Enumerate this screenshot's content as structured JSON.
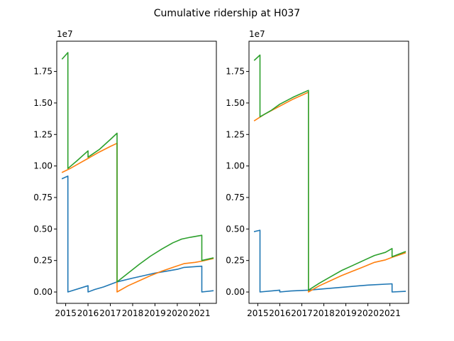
{
  "title": "Cumulative ridership at H037",
  "chart_data": [
    {
      "type": "line",
      "panel": "left",
      "offset_label": "1e7",
      "x_unit": "year",
      "xlim": [
        2014.6,
        2021.75
      ],
      "ylim": [
        -0.09,
        1.99
      ],
      "x_ticks": [
        2015,
        2016,
        2017,
        2018,
        2019,
        2020,
        2021
      ],
      "x_tick_labels": [
        "2015",
        "2016",
        "2017",
        "2018",
        "2019",
        "2020",
        "2021"
      ],
      "y_ticks": [
        0.0,
        0.25,
        0.5,
        0.75,
        1.0,
        1.25,
        1.5,
        1.75
      ],
      "y_tick_labels": [
        "0.00",
        "0.25",
        "0.50",
        "0.75",
        "1.00",
        "1.25",
        "1.50",
        "1.75"
      ],
      "series": [
        {
          "color": "#1f77b4",
          "points": [
            [
              2014.85,
              0.9
            ],
            [
              2015.1,
              0.92
            ],
            [
              2015.1,
              0.0
            ],
            [
              2016.0,
              0.05
            ],
            [
              2016.0,
              0.0
            ],
            [
              2016.3,
              0.02
            ],
            [
              2016.7,
              0.04
            ],
            [
              2017.3,
              0.08
            ],
            [
              2018.0,
              0.11
            ],
            [
              2018.5,
              0.13
            ],
            [
              2019.0,
              0.15
            ],
            [
              2019.5,
              0.165
            ],
            [
              2020.0,
              0.18
            ],
            [
              2020.3,
              0.195
            ],
            [
              2020.7,
              0.2
            ],
            [
              2021.1,
              0.205
            ],
            [
              2021.1,
              0.0
            ],
            [
              2021.6,
              0.01
            ]
          ]
        },
        {
          "color": "#ff7f0e",
          "points": [
            [
              2014.85,
              0.95
            ],
            [
              2015.2,
              0.98
            ],
            [
              2015.6,
              1.02
            ],
            [
              2016.0,
              1.06
            ],
            [
              2016.5,
              1.11
            ],
            [
              2017.0,
              1.155
            ],
            [
              2017.3,
              1.18
            ],
            [
              2017.3,
              0.0
            ],
            [
              2017.8,
              0.05
            ],
            [
              2018.3,
              0.09
            ],
            [
              2018.8,
              0.13
            ],
            [
              2019.3,
              0.165
            ],
            [
              2019.8,
              0.195
            ],
            [
              2020.3,
              0.225
            ],
            [
              2020.8,
              0.235
            ],
            [
              2021.1,
              0.245
            ],
            [
              2021.6,
              0.265
            ]
          ]
        },
        {
          "color": "#2ca02c",
          "points": [
            [
              2014.85,
              1.85
            ],
            [
              2015.1,
              1.9
            ],
            [
              2015.1,
              0.98
            ],
            [
              2015.5,
              1.04
            ],
            [
              2016.0,
              1.12
            ],
            [
              2016.0,
              1.07
            ],
            [
              2016.5,
              1.13
            ],
            [
              2017.0,
              1.21
            ],
            [
              2017.3,
              1.26
            ],
            [
              2017.3,
              0.08
            ],
            [
              2017.8,
              0.15
            ],
            [
              2018.3,
              0.22
            ],
            [
              2018.8,
              0.285
            ],
            [
              2019.3,
              0.34
            ],
            [
              2019.8,
              0.39
            ],
            [
              2020.2,
              0.42
            ],
            [
              2020.6,
              0.435
            ],
            [
              2021.1,
              0.45
            ],
            [
              2021.1,
              0.25
            ],
            [
              2021.6,
              0.27
            ]
          ]
        }
      ]
    },
    {
      "type": "line",
      "panel": "right",
      "offset_label": "1e7",
      "x_unit": "year",
      "xlim": [
        2014.6,
        2021.85
      ],
      "ylim": [
        -0.09,
        1.99
      ],
      "x_ticks": [
        2015,
        2016,
        2017,
        2018,
        2019,
        2020,
        2021
      ],
      "x_tick_labels": [
        "2015",
        "2016",
        "2017",
        "2018",
        "2019",
        "2020",
        "2021"
      ],
      "y_ticks": [
        0.0,
        0.25,
        0.5,
        0.75,
        1.0,
        1.25,
        1.5,
        1.75
      ],
      "y_tick_labels": [
        "0.00",
        "0.25",
        "0.50",
        "0.75",
        "1.00",
        "1.25",
        "1.50",
        "1.75"
      ],
      "series": [
        {
          "color": "#1f77b4",
          "points": [
            [
              2014.85,
              0.48
            ],
            [
              2015.1,
              0.49
            ],
            [
              2015.1,
              0.0
            ],
            [
              2016.0,
              0.015
            ],
            [
              2016.0,
              0.0
            ],
            [
              2016.5,
              0.008
            ],
            [
              2017.3,
              0.015
            ],
            [
              2018.0,
              0.025
            ],
            [
              2019.0,
              0.04
            ],
            [
              2020.0,
              0.055
            ],
            [
              2021.1,
              0.065
            ],
            [
              2021.1,
              0.0
            ],
            [
              2021.7,
              0.005
            ]
          ]
        },
        {
          "color": "#ff7f0e",
          "points": [
            [
              2014.85,
              1.36
            ],
            [
              2015.3,
              1.41
            ],
            [
              2016.0,
              1.475
            ],
            [
              2016.6,
              1.53
            ],
            [
              2017.3,
              1.585
            ],
            [
              2017.3,
              0.0
            ],
            [
              2017.8,
              0.05
            ],
            [
              2018.3,
              0.09
            ],
            [
              2018.8,
              0.13
            ],
            [
              2019.3,
              0.165
            ],
            [
              2019.8,
              0.2
            ],
            [
              2020.3,
              0.235
            ],
            [
              2020.8,
              0.255
            ],
            [
              2021.1,
              0.275
            ],
            [
              2021.7,
              0.31
            ]
          ]
        },
        {
          "color": "#2ca02c",
          "points": [
            [
              2014.85,
              1.84
            ],
            [
              2015.1,
              1.88
            ],
            [
              2015.1,
              1.39
            ],
            [
              2015.6,
              1.44
            ],
            [
              2016.0,
              1.49
            ],
            [
              2016.6,
              1.545
            ],
            [
              2017.3,
              1.6
            ],
            [
              2017.3,
              0.015
            ],
            [
              2017.8,
              0.07
            ],
            [
              2018.3,
              0.12
            ],
            [
              2018.8,
              0.17
            ],
            [
              2019.3,
              0.21
            ],
            [
              2019.8,
              0.25
            ],
            [
              2020.3,
              0.29
            ],
            [
              2020.8,
              0.315
            ],
            [
              2021.1,
              0.345
            ],
            [
              2021.1,
              0.28
            ],
            [
              2021.7,
              0.32
            ]
          ]
        }
      ]
    }
  ]
}
